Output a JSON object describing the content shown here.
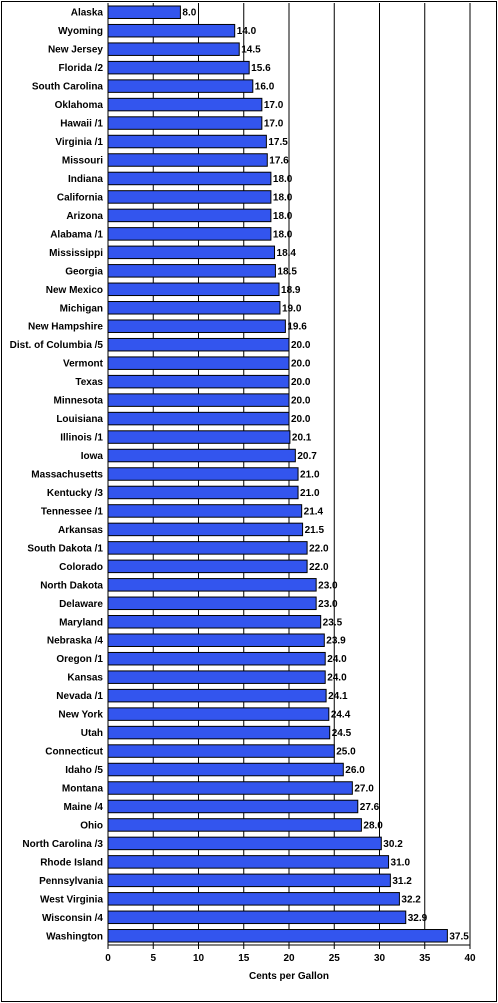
{
  "chart_data": {
    "type": "bar",
    "orientation": "horizontal",
    "title": "",
    "xlabel": "Cents per Gallon",
    "ylabel": "",
    "xlim": [
      0,
      40
    ],
    "xticks": [
      0,
      5,
      10,
      15,
      20,
      25,
      30,
      35,
      40
    ],
    "grid": true,
    "bar_color": "#3355ee",
    "categories": [
      "Alaska",
      "Wyoming",
      "New Jersey",
      "Florida /2",
      "South Carolina",
      "Oklahoma",
      "Hawaii /1",
      "Virginia /1",
      "Missouri",
      "Indiana",
      "California",
      "Arizona",
      "Alabama /1",
      "Mississippi",
      "Georgia",
      "New Mexico",
      "Michigan",
      "New Hampshire",
      "Dist. of Columbia /5",
      "Vermont",
      "Texas",
      "Minnesota",
      "Louisiana",
      "Illinois /1",
      "Iowa",
      "Massachusetts",
      "Kentucky /3",
      "Tennessee /1",
      "Arkansas",
      "South Dakota /1",
      "Colorado",
      "North Dakota",
      "Delaware",
      "Maryland",
      "Nebraska /4",
      "Oregon /1",
      "Kansas",
      "Nevada /1",
      "New York",
      "Utah",
      "Connecticut",
      "Idaho /5",
      "Montana",
      "Maine /4",
      "Ohio",
      "North Carolina /3",
      "Rhode Island",
      "Pennsylvania",
      "West Virginia",
      "Wisconsin /4",
      "Washington"
    ],
    "values": [
      8.0,
      14.0,
      14.5,
      15.6,
      16.0,
      17.0,
      17.0,
      17.5,
      17.6,
      18.0,
      18.0,
      18.0,
      18.0,
      18.4,
      18.5,
      18.9,
      19.0,
      19.6,
      20.0,
      20.0,
      20.0,
      20.0,
      20.0,
      20.1,
      20.7,
      21.0,
      21.0,
      21.4,
      21.5,
      22.0,
      22.0,
      23.0,
      23.0,
      23.5,
      23.9,
      24.0,
      24.0,
      24.1,
      24.4,
      24.5,
      25.0,
      26.0,
      27.0,
      27.6,
      28.0,
      30.2,
      31.0,
      31.2,
      32.2,
      32.9,
      37.5
    ],
    "value_labels": [
      "8.0",
      "14.0",
      "14.5",
      "15.6",
      "16.0",
      "17.0",
      "17.0",
      "17.5",
      "17.6",
      "18.0",
      "18.0",
      "18.0",
      "18.0",
      "18.4",
      "18.5",
      "18.9",
      "19.0",
      "19.6",
      "20.0",
      "20.0",
      "20.0",
      "20.0",
      "20.0",
      "20.1",
      "20.7",
      "21.0",
      "21.0",
      "21.4",
      "21.5",
      "22.0",
      "22.0",
      "23.0",
      "23.0",
      "23.5",
      "23.9",
      "24.0",
      "24.0",
      "24.1",
      "24.4",
      "24.5",
      "25.0",
      "26.0",
      "27.0",
      "27.6",
      "28.0",
      "30.2",
      "31.0",
      "31.2",
      "32.2",
      "32.9",
      "37.5"
    ]
  }
}
